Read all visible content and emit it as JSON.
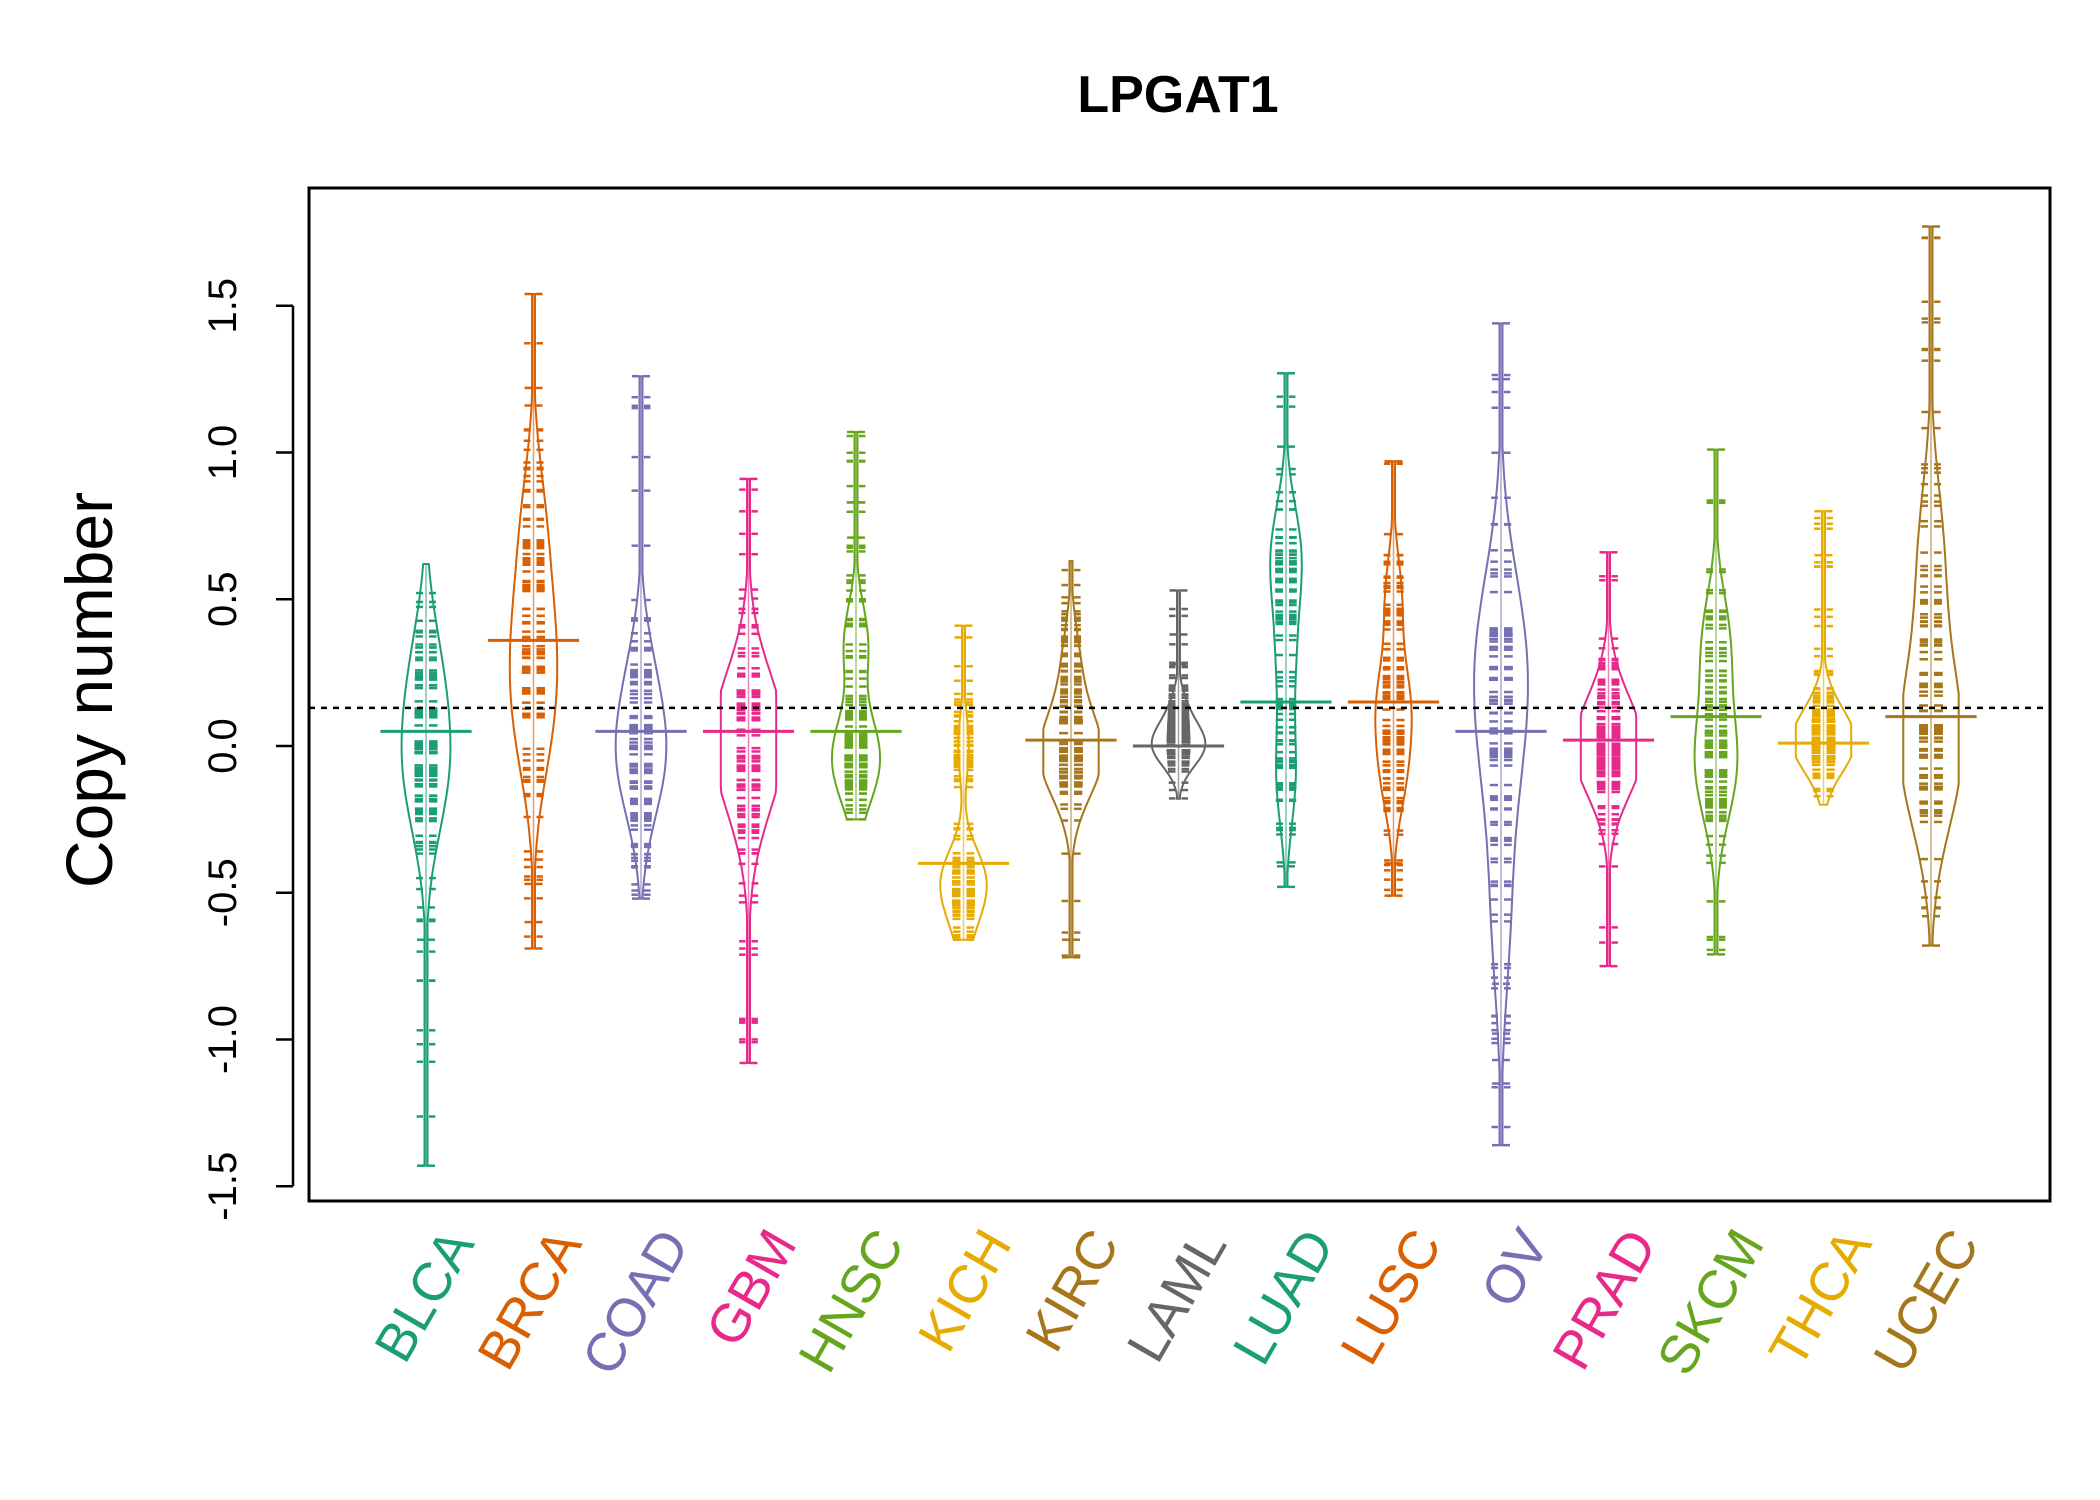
{
  "chart_data": {
    "type": "beanplot",
    "title": "LPGAT1",
    "xlabel": "",
    "ylabel": "Copy number",
    "ylim": [
      -1.55,
      1.9
    ],
    "yticks": [
      -1.5,
      -1.0,
      -0.5,
      0.0,
      0.5,
      1.0,
      1.5
    ],
    "ytick_labels": [
      "-1.5",
      "-1.0",
      "-0.5",
      "0.0",
      "0.5",
      "1.0",
      "1.5"
    ],
    "reference_line": 0.13,
    "series": [
      {
        "name": "BLCA",
        "color": "#1B9E77",
        "min": -1.43,
        "max": 0.62,
        "median": 0.0,
        "mean": 0.05,
        "modes": [
          [
            0.0,
            0.55
          ],
          [
            0.28,
            0.4
          ],
          [
            -0.2,
            0.35
          ]
        ],
        "outliers": [
          -1.43,
          -0.66,
          -0.55
        ]
      },
      {
        "name": "BRCA",
        "color": "#D95F02",
        "min": -0.69,
        "max": 1.54,
        "median": 0.36,
        "mean": 0.36,
        "modes": [
          [
            0.36,
            0.6
          ],
          [
            0.05,
            0.5
          ],
          [
            0.75,
            0.4
          ]
        ],
        "outliers": [
          1.54,
          1.22,
          1.16,
          -0.47,
          -0.6,
          -0.69
        ]
      },
      {
        "name": "COAD",
        "color": "#7570B3",
        "min": -0.52,
        "max": 1.26,
        "median": 0.0,
        "mean": 0.05,
        "modes": [
          [
            0.0,
            0.65
          ],
          [
            0.25,
            0.35
          ],
          [
            -0.18,
            0.3
          ]
        ],
        "outliers": [
          1.26,
          -0.52
        ]
      },
      {
        "name": "GBM",
        "color": "#E7298A",
        "min": -1.08,
        "max": 0.91,
        "median": 0.02,
        "mean": 0.05,
        "modes": [
          [
            0.02,
            0.9
          ],
          [
            0.18,
            0.35
          ],
          [
            -0.18,
            0.35
          ]
        ],
        "outliers": [
          -1.08,
          0.91
        ]
      },
      {
        "name": "HNSC",
        "color": "#66A61E",
        "min": -0.25,
        "max": 1.07,
        "median": 0.0,
        "mean": 0.05,
        "modes": [
          [
            0.0,
            0.6
          ],
          [
            0.35,
            0.45
          ],
          [
            -0.12,
            0.4
          ]
        ],
        "outliers": [
          1.07,
          0.83,
          0.71
        ]
      },
      {
        "name": "KICH",
        "color": "#E6AB02",
        "min": -0.66,
        "max": 0.41,
        "median": -0.45,
        "mean": -0.4,
        "modes": [
          [
            -0.45,
            0.75
          ],
          [
            -0.6,
            0.3
          ],
          [
            0.0,
            0.2
          ]
        ],
        "outliers": [
          0.41,
          0.37
        ]
      },
      {
        "name": "KIRC",
        "color": "#A6761D",
        "min": -0.72,
        "max": 0.63,
        "median": 0.0,
        "mean": 0.02,
        "modes": [
          [
            0.0,
            0.85
          ],
          [
            0.28,
            0.3
          ],
          [
            -0.1,
            0.4
          ]
        ],
        "outliers": [
          -0.72,
          -0.66
        ]
      },
      {
        "name": "LAML",
        "color": "#666666",
        "min": -0.18,
        "max": 0.53,
        "median": 0.0,
        "mean": 0.0,
        "modes": [
          [
            0.0,
            0.95
          ],
          [
            0.12,
            0.25
          ]
        ],
        "outliers": [
          0.53,
          0.38,
          0.28
        ]
      },
      {
        "name": "LUAD",
        "color": "#1B9E77",
        "min": -0.48,
        "max": 1.27,
        "median": 0.15,
        "mean": 0.15,
        "modes": [
          [
            0.65,
            0.55
          ],
          [
            0.3,
            0.3
          ],
          [
            -0.1,
            0.35
          ]
        ],
        "outliers": [
          1.27,
          1.02,
          -0.41,
          -0.48
        ]
      },
      {
        "name": "LUSC",
        "color": "#D95F02",
        "min": -0.51,
        "max": 0.97,
        "median": 0.15,
        "mean": 0.15,
        "modes": [
          [
            0.15,
            0.55
          ],
          [
            -0.1,
            0.4
          ],
          [
            0.5,
            0.3
          ]
        ],
        "outliers": [
          0.97,
          -0.4,
          -0.51
        ]
      },
      {
        "name": "OV",
        "color": "#7570B3",
        "min": -1.36,
        "max": 1.44,
        "median": 0.2,
        "mean": 0.05,
        "modes": [
          [
            0.2,
            0.55
          ],
          [
            0.45,
            0.4
          ],
          [
            -0.1,
            0.35
          ],
          [
            -0.6,
            0.3
          ]
        ],
        "outliers": [
          1.44,
          1.25,
          -0.81,
          -0.98,
          -1.07,
          -1.15,
          -1.36
        ]
      },
      {
        "name": "PRAD",
        "color": "#E7298A",
        "min": -0.75,
        "max": 0.66,
        "median": 0.0,
        "mean": 0.02,
        "modes": [
          [
            0.0,
            0.9
          ],
          [
            0.15,
            0.3
          ],
          [
            -0.12,
            0.35
          ]
        ],
        "outliers": [
          0.66,
          -0.75
        ]
      },
      {
        "name": "SKCM",
        "color": "#66A61E",
        "min": -0.71,
        "max": 1.01,
        "median": 0.1,
        "mean": 0.1,
        "modes": [
          [
            0.35,
            0.5
          ],
          [
            0.0,
            0.5
          ],
          [
            -0.15,
            0.35
          ]
        ],
        "outliers": [
          1.01,
          -0.71
        ]
      },
      {
        "name": "THCA",
        "color": "#E6AB02",
        "min": -0.2,
        "max": 0.8,
        "median": 0.0,
        "mean": 0.01,
        "modes": [
          [
            0.0,
            1.0
          ],
          [
            0.1,
            0.3
          ]
        ],
        "outliers": [
          0.8,
          0.65
        ]
      },
      {
        "name": "UCEC",
        "color": "#A6761D",
        "min": -0.68,
        "max": 1.77,
        "median": 0.01,
        "mean": 0.1,
        "modes": [
          [
            0.01,
            0.75
          ],
          [
            0.68,
            0.4
          ],
          [
            0.3,
            0.3
          ],
          [
            -0.15,
            0.35
          ]
        ],
        "outliers": [
          1.77,
          -0.58,
          -0.68
        ]
      }
    ]
  }
}
